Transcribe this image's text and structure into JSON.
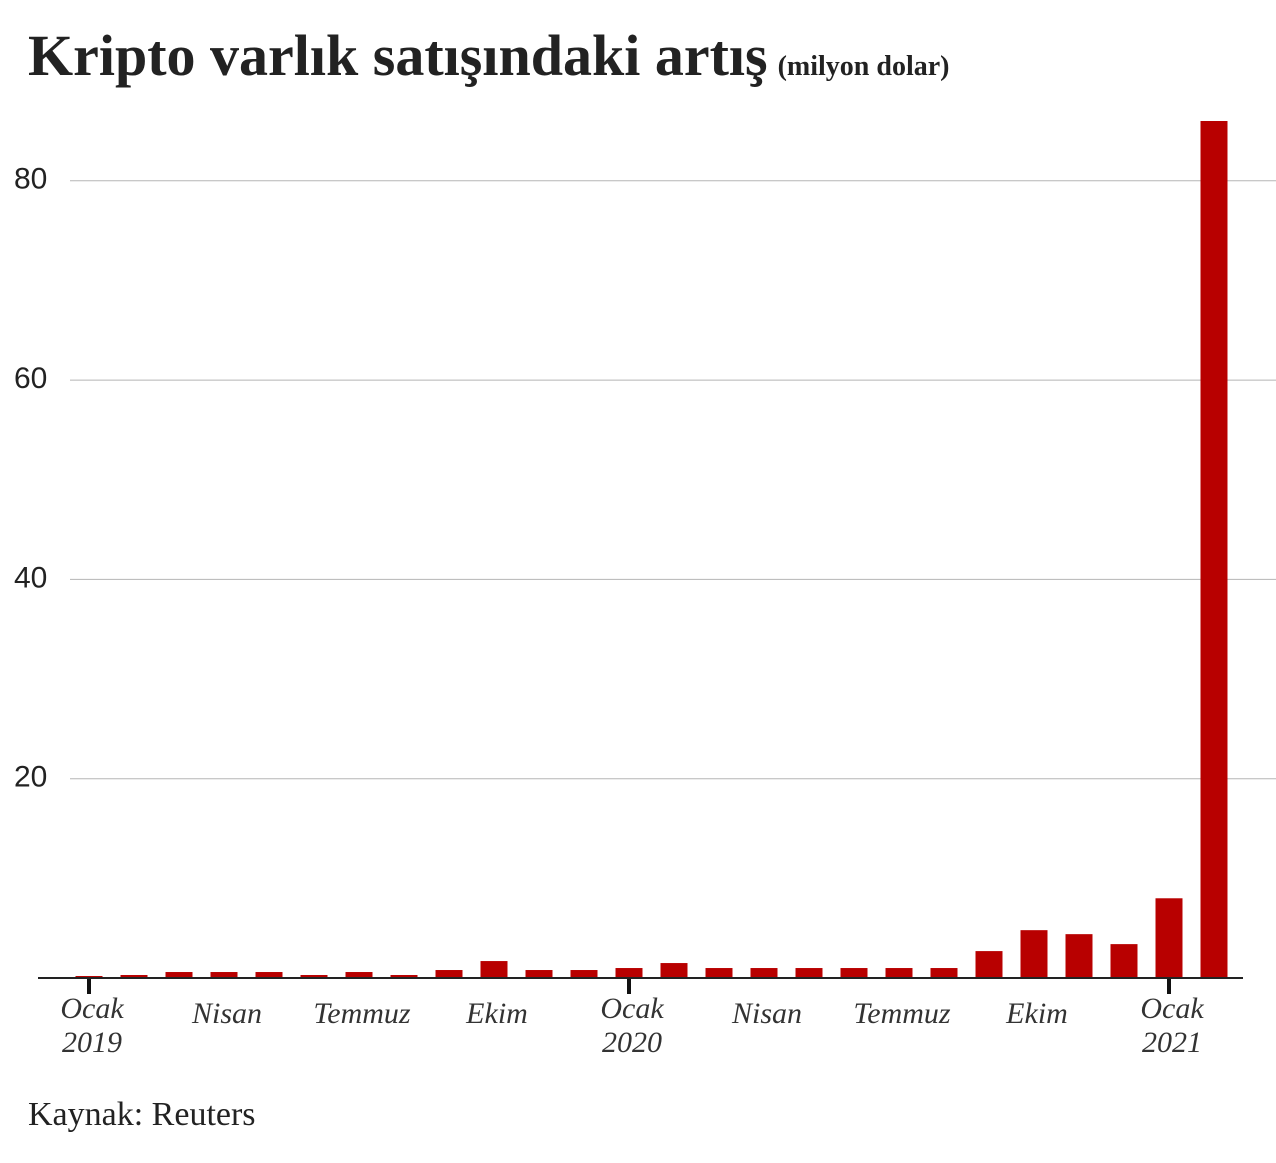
{
  "chart_data": {
    "type": "bar",
    "title": "Kripto varlık satışındaki artış",
    "subtitle": "(milyon dolar)",
    "source": "Kaynak: Reuters",
    "categories": [
      "Ocak\n2019",
      null,
      null,
      "Nisan",
      null,
      null,
      "Temmuz",
      null,
      null,
      "Ekim",
      null,
      null,
      "Ocak\n2020",
      null,
      null,
      "Nisan",
      null,
      null,
      "Temmuz",
      null,
      null,
      "Ekim",
      null,
      null,
      "Ocak\n2021",
      null
    ],
    "values": [
      0.2,
      0.3,
      0.6,
      0.6,
      0.6,
      0.3,
      0.6,
      0.3,
      0.8,
      1.7,
      0.8,
      0.8,
      1.0,
      1.5,
      1.0,
      1.0,
      1.0,
      1.0,
      1.0,
      1.0,
      2.7,
      4.8,
      4.4,
      3.4,
      8.0,
      86
    ],
    "color": "#b80000",
    "ylim": [
      0,
      86
    ],
    "yticks": [
      20,
      40,
      60,
      80
    ],
    "grid": true
  }
}
